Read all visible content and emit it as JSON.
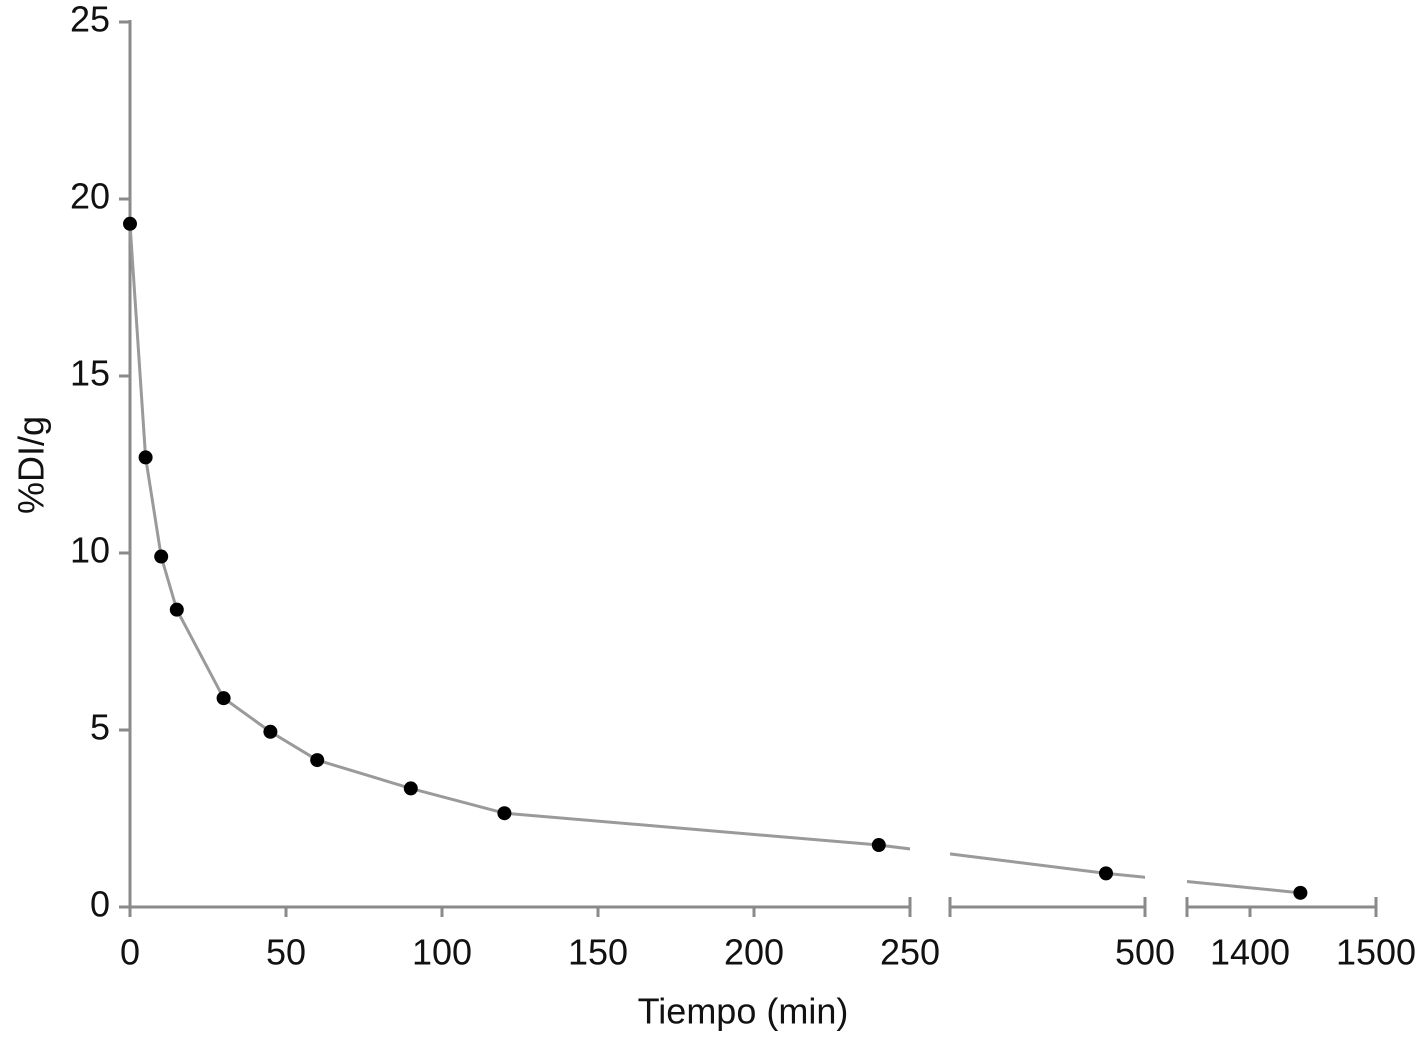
{
  "chart_data": {
    "type": "line",
    "x_label": "Tiempo (min)",
    "y_label": "%DI/g",
    "x": [
      0,
      5,
      10,
      15,
      30,
      45,
      60,
      90,
      120,
      240,
      480,
      1440
    ],
    "values": [
      19.3,
      12.7,
      9.9,
      8.4,
      5.9,
      4.95,
      4.15,
      3.35,
      2.65,
      1.75,
      0.95,
      0.4
    ],
    "line_color": "#9a9a9a",
    "marker_color": "#000000",
    "x_segments": [
      {
        "xlim": [
          0,
          250
        ],
        "xticks": [
          0,
          50,
          100,
          150,
          200,
          250
        ]
      },
      {
        "xlim": [
          400,
          500
        ],
        "xticks": [
          500
        ]
      },
      {
        "xlim": [
          1350,
          1500
        ],
        "xticks": [
          1400,
          1500
        ]
      }
    ],
    "ylim": [
      0,
      25
    ],
    "yticks": [
      0,
      5,
      10,
      15,
      20,
      25
    ]
  }
}
